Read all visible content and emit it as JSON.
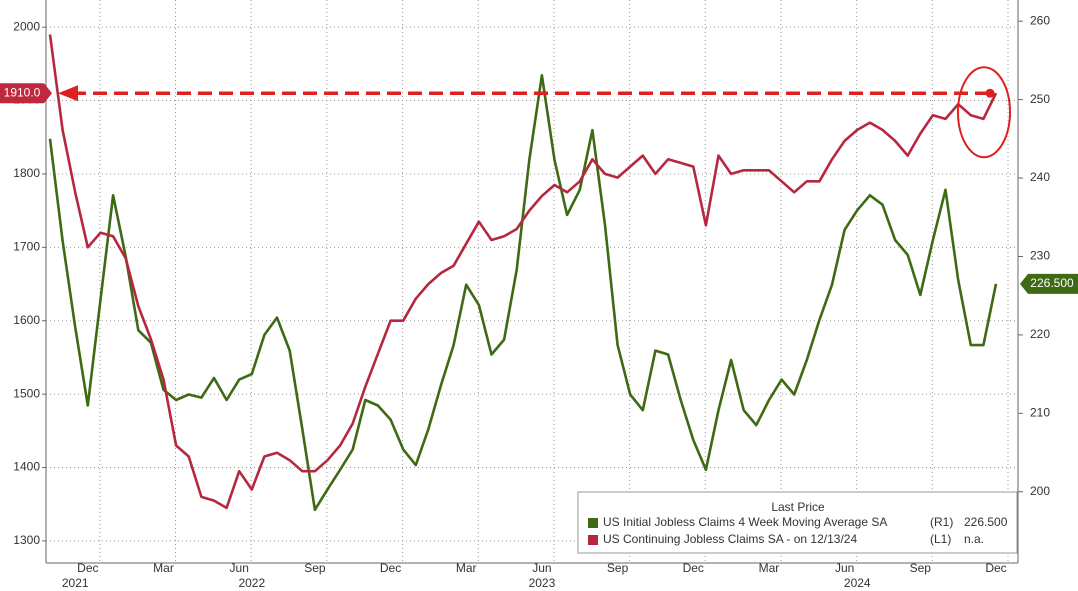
{
  "chart_data": {
    "type": "line",
    "categories": [
      null,
      null,
      null,
      "Dec",
      null,
      null,
      null,
      null,
      null,
      "Mar",
      null,
      null,
      null,
      null,
      null,
      "Jun",
      null,
      null,
      null,
      null,
      null,
      "Sep",
      null,
      null,
      null,
      null,
      null,
      "Dec",
      null,
      null,
      null,
      null,
      null,
      "Mar",
      null,
      null,
      null,
      null,
      null,
      "Jun",
      null,
      null,
      null,
      null,
      null,
      "Sep",
      null,
      null,
      null,
      null,
      null,
      "Dec",
      null,
      null,
      null,
      null,
      null,
      "Mar",
      null,
      null,
      null,
      null,
      null,
      "Jun",
      null,
      null,
      null,
      null,
      null,
      "Sep",
      null,
      null,
      null,
      null,
      null,
      "Dec"
    ],
    "years": [
      null,
      null,
      "2021",
      null,
      null,
      null,
      null,
      null,
      null,
      null,
      null,
      null,
      null,
      null,
      null,
      null,
      "2022",
      null,
      null,
      null,
      null,
      null,
      null,
      null,
      null,
      null,
      null,
      null,
      null,
      null,
      null,
      null,
      null,
      null,
      null,
      null,
      null,
      null,
      null,
      "2023",
      null,
      null,
      null,
      null,
      null,
      null,
      null,
      null,
      null,
      null,
      null,
      null,
      null,
      null,
      null,
      null,
      null,
      null,
      null,
      null,
      null,
      null,
      null,
      null,
      "2024",
      null,
      null,
      null,
      null,
      null,
      null,
      null,
      null,
      null,
      null,
      null
    ],
    "legend_title": "Last Price",
    "series": [
      {
        "name": "US Initial Jobless Claims 4 Week Moving Average SA",
        "axis_tag": "(R1)",
        "last_label": "226.500",
        "axis": "y2",
        "color": "#3d6a12",
        "values": [
          245,
          232,
          221,
          211,
          224.5,
          237.8,
          230,
          220.6,
          219,
          213,
          211.7,
          212.4,
          212,
          214.5,
          211.7,
          214.3,
          215,
          220,
          222.2,
          218,
          208,
          197.7,
          200.3,
          202.8,
          205.4,
          211.7,
          211,
          209.2,
          205.4,
          203.4,
          208,
          213.6,
          218.7,
          226.4,
          223.8,
          217.5,
          219.4,
          228.3,
          242.3,
          253.1,
          242.3,
          235.3,
          238.5,
          246.1,
          234,
          218.7,
          212.4,
          210.4,
          218,
          217.5,
          211.7,
          206.6,
          202.8,
          210.4,
          216.8,
          210.4,
          208.5,
          211.7,
          214.3,
          212.4,
          216.8,
          221.9,
          226.4,
          233.4,
          235.9,
          237.8,
          236.6,
          232.1,
          230.2,
          225.1,
          232.1,
          238.5,
          227,
          218.7,
          218.7,
          226.5
        ]
      },
      {
        "name": "US Continuing Jobless Claims SA - on 12/13/24",
        "axis_tag": "(L1)",
        "last_label": "n.a.",
        "color": "#b5283f",
        "values": [
          1990,
          1860,
          1775,
          1700,
          1720,
          1715,
          1685,
          1620,
          1575,
          1520,
          1430,
          1415,
          1360,
          1355,
          1345,
          1395,
          1370,
          1415,
          1420,
          1410,
          1395,
          1395,
          1410,
          1430,
          1460,
          1510,
          1555,
          1600,
          1600,
          1630,
          1650,
          1665,
          1675,
          1705,
          1735,
          1710,
          1715,
          1725,
          1750,
          1770,
          1785,
          1775,
          1790,
          1820,
          1800,
          1795,
          1810,
          1825,
          1800,
          1820,
          1815,
          1810,
          1730,
          1825,
          1800,
          1805,
          1805,
          1805,
          1790,
          1775,
          1790,
          1790,
          1820,
          1845,
          1860,
          1870,
          1860,
          1845,
          1825,
          1855,
          1880,
          1875,
          1895,
          1880,
          1875,
          1910
        ]
      }
    ],
    "reference_line": {
      "value": 1910,
      "label": "1910.0",
      "color": "#e02020"
    },
    "ylim": [
      1274,
      2037
    ],
    "yticks": [
      1300,
      1400,
      1500,
      1600,
      1700,
      1800,
      1900,
      2000
    ],
    "y2lim": [
      191.3,
      262.7
    ],
    "y2ticks": [
      200,
      210,
      220,
      230,
      240,
      250,
      260
    ],
    "grid": true
  }
}
